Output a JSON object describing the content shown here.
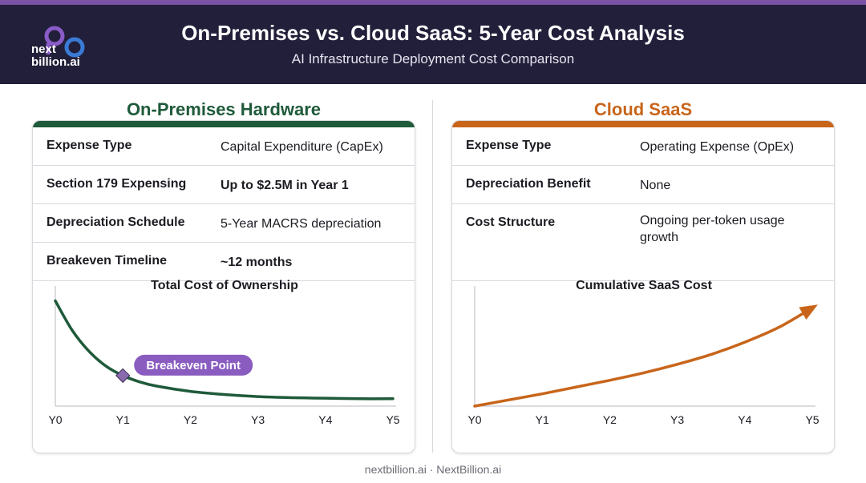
{
  "header": {
    "title": "On-Premises vs. Cloud SaaS: 5-Year Cost Analysis",
    "subtitle": "AI Infrastructure Deployment Cost Comparison",
    "logo_line1": "next",
    "logo_line2": "billion.ai"
  },
  "colors": {
    "header_bg": "#221f3a",
    "accent_purple": "#7a52a6",
    "onprem_green": "#1f5a3a",
    "saas_orange": "#c8651a"
  },
  "onprem": {
    "title": "On-Premises Hardware",
    "rows": [
      {
        "label": "Expense Type",
        "value": "Capital Expenditure (CapEx)",
        "bold": false
      },
      {
        "label": "Section 179 Expensing",
        "value": "Up to $2.5M in Year 1",
        "bold": true
      },
      {
        "label": "Depreciation Schedule",
        "value": "5-Year MACRS depreciation",
        "bold": false
      },
      {
        "label": "Breakeven Timeline",
        "value": "~12 months",
        "bold": true
      }
    ]
  },
  "saas": {
    "title": "Cloud SaaS",
    "rows": [
      {
        "label": "Expense Type",
        "value": "Operating Expense (OpEx)",
        "bold": false
      },
      {
        "label": "Depreciation Benefit",
        "value": "None",
        "bold": false
      },
      {
        "label": "Cost Structure",
        "value": "Ongoing per-token usage growth",
        "bold": false
      }
    ]
  },
  "chart_data": [
    {
      "type": "line",
      "title": "Total Cost of Ownership",
      "categories": [
        "Y0",
        "Y1",
        "Y2",
        "Y3",
        "Y4",
        "Y5"
      ],
      "x": [
        0,
        0.25,
        0.5,
        0.75,
        1,
        1.25,
        1.5,
        2,
        2.5,
        3,
        3.5,
        4,
        4.5,
        5
      ],
      "series": [
        {
          "values": [
            100,
            72,
            52,
            38,
            29,
            23,
            19,
            14,
            11,
            9,
            8,
            7.5,
            7,
            7
          ]
        }
      ],
      "annotation": {
        "label": "Breakeven Point",
        "x": 1,
        "y": 29
      },
      "ylim": [
        0,
        105
      ],
      "grid": false
    },
    {
      "type": "line",
      "title": "Cumulative SaaS Cost",
      "categories": [
        "Y0",
        "Y1",
        "Y2",
        "Y3",
        "Y4",
        "Y5"
      ],
      "x": [
        0,
        0.5,
        1,
        1.5,
        2,
        2.5,
        3,
        3.5,
        4,
        4.5,
        5
      ],
      "series": [
        {
          "values": [
            0,
            5,
            10,
            15.5,
            21,
            27,
            34,
            42,
            52,
            64,
            80
          ]
        }
      ],
      "ylim": [
        0,
        90
      ],
      "grid": false
    }
  ],
  "footer": "nextbillion.ai · NextBillion.ai"
}
